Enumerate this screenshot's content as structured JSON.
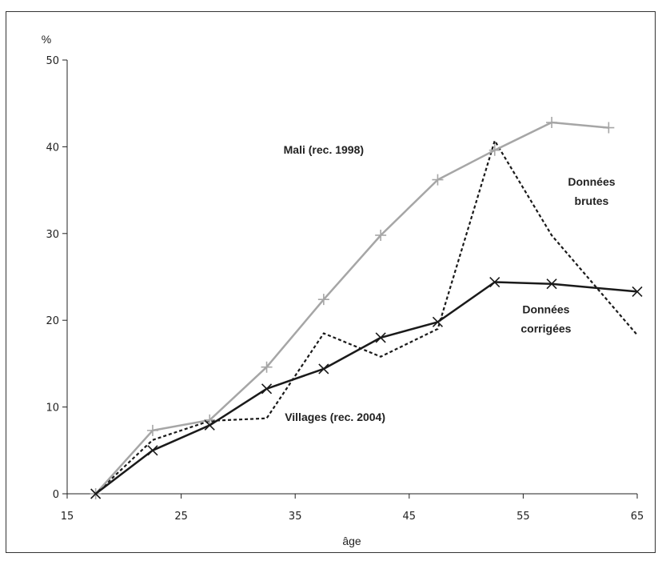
{
  "chart_data": {
    "type": "line",
    "xlabel": "âge",
    "ylabel": "%",
    "xlim": [
      15,
      65
    ],
    "ylim": [
      0,
      50
    ],
    "x_ticks": [
      "15",
      "25",
      "35",
      "45",
      "55",
      "65"
    ],
    "y_ticks": [
      "0",
      "10",
      "20",
      "30",
      "40",
      "50"
    ],
    "grid": false,
    "series": [
      {
        "name": "Mali (rec. 1998)",
        "color": "#a6a6a6",
        "style": "solid",
        "marker": "plus",
        "x": [
          17.5,
          22.5,
          27.5,
          32.5,
          37.5,
          42.5,
          47.5,
          52.5,
          57.5,
          62.5
        ],
        "y": [
          0,
          7.3,
          8.5,
          14.6,
          22.4,
          29.8,
          36.2,
          39.6,
          42.8,
          42.2
        ]
      },
      {
        "name": "Données corrigées",
        "color": "#1a1a1a",
        "style": "solid",
        "marker": "x",
        "x": [
          17.5,
          22.5,
          27.5,
          32.5,
          37.5,
          42.5,
          47.5,
          52.5,
          57.5,
          65
        ],
        "y": [
          0,
          5.0,
          7.9,
          12.1,
          14.4,
          18.0,
          19.8,
          24.4,
          24.2,
          23.3
        ]
      },
      {
        "name": "Données brutes",
        "color": "#1a1a1a",
        "style": "dashed",
        "marker": "none",
        "x": [
          17.5,
          22.5,
          27.5,
          32.5,
          37.5,
          42.5,
          47.5,
          52.5,
          57.5,
          65
        ],
        "y": [
          0,
          6.2,
          8.4,
          8.7,
          18.5,
          15.8,
          19.0,
          40.7,
          29.8,
          18.3
        ]
      }
    ],
    "annotations": [
      {
        "text": "Mali (rec. 1998)",
        "x": 37.5,
        "y": 39.2
      },
      {
        "text": "Données",
        "x": 61,
        "y": 35.5
      },
      {
        "text": "brutes",
        "x": 61,
        "y": 33.3
      },
      {
        "text": "Données",
        "x": 57,
        "y": 20.8
      },
      {
        "text": "corrigées",
        "x": 57,
        "y": 18.6
      },
      {
        "text": "Villages (rec. 2004)",
        "x": 38.5,
        "y": 8.4
      }
    ]
  }
}
